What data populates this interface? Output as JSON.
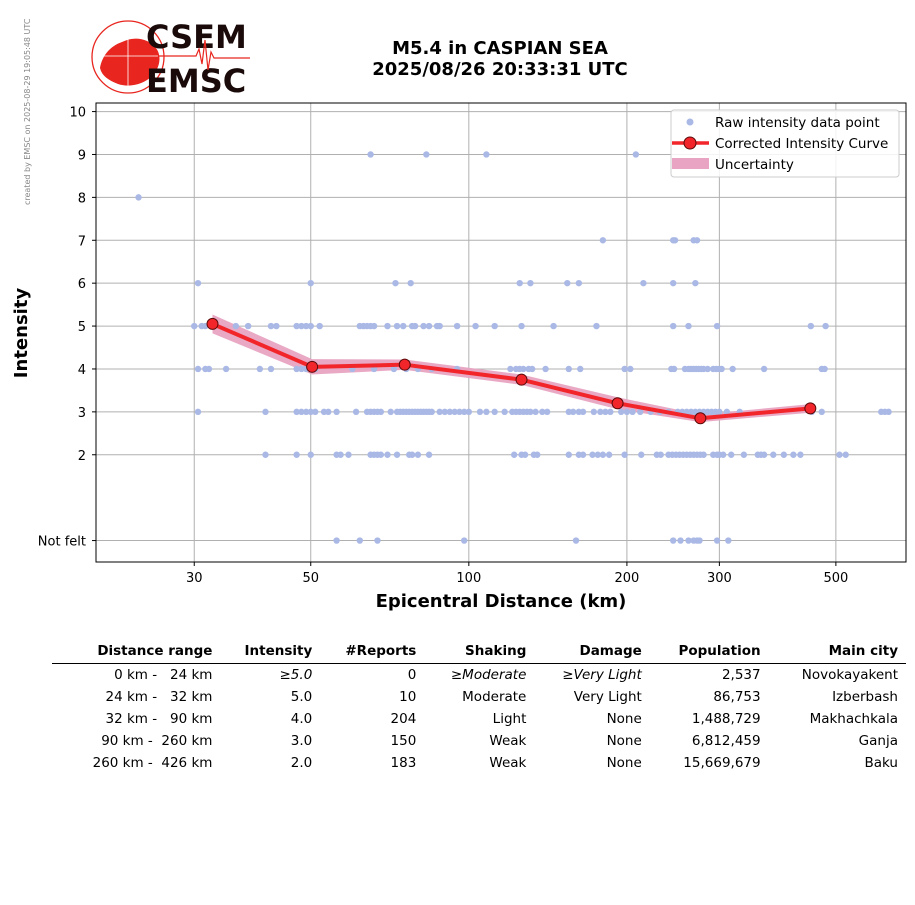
{
  "credit": "created by EMSC on 2025-08-29 19:05:48 UTC",
  "logo": {
    "top_text": "CSEM",
    "bottom_text": "EMSC",
    "colors": {
      "red": "#e8261f",
      "dark": "#1a0a0a"
    }
  },
  "title": {
    "line1": "M5.4 in CASPIAN SEA",
    "line2": "2025/08/26 20:33:31 UTC"
  },
  "chart_data": {
    "type": "scatter",
    "xlabel": "Epicentral Distance (km)",
    "ylabel": "Intensity",
    "x_scale": "log",
    "xlim": [
      19.5,
      680
    ],
    "ylim": [
      -0.5,
      10.2
    ],
    "x_ticks": [
      {
        "value": 30,
        "label": "30"
      },
      {
        "value": 50,
        "label": "50"
      },
      {
        "value": 100,
        "label": "100"
      },
      {
        "value": 200,
        "label": "200"
      },
      {
        "value": 300,
        "label": "300"
      },
      {
        "value": 500,
        "label": "500"
      }
    ],
    "y_ticks": [
      {
        "value": 0,
        "label": "Not felt"
      },
      {
        "value": 2,
        "label": "2"
      },
      {
        "value": 3,
        "label": "3"
      },
      {
        "value": 4,
        "label": "4"
      },
      {
        "value": 5,
        "label": "5"
      },
      {
        "value": 6,
        "label": "6"
      },
      {
        "value": 7,
        "label": "7"
      },
      {
        "value": 8,
        "label": "8"
      },
      {
        "value": 9,
        "label": "9"
      },
      {
        "value": 10,
        "label": "10"
      }
    ],
    "grid": true,
    "legend_position": "top-right",
    "legend": [
      "Raw intensity data point",
      "Corrected Intensity Curve",
      "Uncertainty"
    ],
    "colors": {
      "raw": "#aab8e6",
      "curve": "#f2262a",
      "marker": "#f2262a",
      "band": "#e8a4c2"
    },
    "raw_points": [
      {
        "x": 23.5,
        "y": 8
      },
      {
        "x": 65,
        "y": 9
      },
      {
        "x": 83,
        "y": 9
      },
      {
        "x": 108,
        "y": 9
      },
      {
        "x": 208,
        "y": 9
      },
      {
        "x": 180,
        "y": 7
      },
      {
        "x": 245,
        "y": 7
      },
      {
        "x": 247,
        "y": 7
      },
      {
        "x": 268,
        "y": 7
      },
      {
        "x": 272,
        "y": 7
      },
      {
        "x": 30.5,
        "y": 6
      },
      {
        "x": 50,
        "y": 6
      },
      {
        "x": 72.5,
        "y": 6
      },
      {
        "x": 77.5,
        "y": 6
      },
      {
        "x": 125,
        "y": 6
      },
      {
        "x": 131,
        "y": 6
      },
      {
        "x": 154,
        "y": 6
      },
      {
        "x": 162,
        "y": 6
      },
      {
        "x": 215,
        "y": 6
      },
      {
        "x": 245,
        "y": 6
      },
      {
        "x": 270,
        "y": 6
      },
      {
        "x": 30,
        "y": 5
      },
      {
        "x": 31,
        "y": 5
      },
      {
        "x": 31.5,
        "y": 5
      },
      {
        "x": 36,
        "y": 5
      },
      {
        "x": 38,
        "y": 5
      },
      {
        "x": 42,
        "y": 5
      },
      {
        "x": 43,
        "y": 5
      },
      {
        "x": 47,
        "y": 5
      },
      {
        "x": 48,
        "y": 5
      },
      {
        "x": 49,
        "y": 5
      },
      {
        "x": 50,
        "y": 5
      },
      {
        "x": 52,
        "y": 5
      },
      {
        "x": 62,
        "y": 5
      },
      {
        "x": 63,
        "y": 5
      },
      {
        "x": 64,
        "y": 5
      },
      {
        "x": 65,
        "y": 5
      },
      {
        "x": 66,
        "y": 5
      },
      {
        "x": 70,
        "y": 5
      },
      {
        "x": 73,
        "y": 5
      },
      {
        "x": 75,
        "y": 5
      },
      {
        "x": 78,
        "y": 5
      },
      {
        "x": 79,
        "y": 5
      },
      {
        "x": 82,
        "y": 5
      },
      {
        "x": 84,
        "y": 5
      },
      {
        "x": 87,
        "y": 5
      },
      {
        "x": 88,
        "y": 5
      },
      {
        "x": 95,
        "y": 5
      },
      {
        "x": 103,
        "y": 5
      },
      {
        "x": 112,
        "y": 5
      },
      {
        "x": 126,
        "y": 5
      },
      {
        "x": 145,
        "y": 5
      },
      {
        "x": 175,
        "y": 5
      },
      {
        "x": 245,
        "y": 5
      },
      {
        "x": 262,
        "y": 5
      },
      {
        "x": 297,
        "y": 5
      },
      {
        "x": 448,
        "y": 5
      },
      {
        "x": 478,
        "y": 5
      },
      {
        "x": 30.5,
        "y": 4
      },
      {
        "x": 31.5,
        "y": 4
      },
      {
        "x": 32,
        "y": 4
      },
      {
        "x": 34.5,
        "y": 4
      },
      {
        "x": 40,
        "y": 4
      },
      {
        "x": 42,
        "y": 4
      },
      {
        "x": 47,
        "y": 4
      },
      {
        "x": 48,
        "y": 4
      },
      {
        "x": 49,
        "y": 4
      },
      {
        "x": 50,
        "y": 4
      },
      {
        "x": 51,
        "y": 4
      },
      {
        "x": 60,
        "y": 4
      },
      {
        "x": 66,
        "y": 4
      },
      {
        "x": 72,
        "y": 4
      },
      {
        "x": 76,
        "y": 4
      },
      {
        "x": 80,
        "y": 4
      },
      {
        "x": 85,
        "y": 4
      },
      {
        "x": 95,
        "y": 4
      },
      {
        "x": 120,
        "y": 4
      },
      {
        "x": 123,
        "y": 4
      },
      {
        "x": 125,
        "y": 4
      },
      {
        "x": 127,
        "y": 4
      },
      {
        "x": 130,
        "y": 4
      },
      {
        "x": 132,
        "y": 4
      },
      {
        "x": 140,
        "y": 4
      },
      {
        "x": 155,
        "y": 4
      },
      {
        "x": 163,
        "y": 4
      },
      {
        "x": 198,
        "y": 4
      },
      {
        "x": 203,
        "y": 4
      },
      {
        "x": 243,
        "y": 4
      },
      {
        "x": 246,
        "y": 4
      },
      {
        "x": 258,
        "y": 4
      },
      {
        "x": 262,
        "y": 4
      },
      {
        "x": 265,
        "y": 4
      },
      {
        "x": 268,
        "y": 4
      },
      {
        "x": 271,
        "y": 4
      },
      {
        "x": 274,
        "y": 4
      },
      {
        "x": 277,
        "y": 4
      },
      {
        "x": 280,
        "y": 4
      },
      {
        "x": 285,
        "y": 4
      },
      {
        "x": 292,
        "y": 4
      },
      {
        "x": 296,
        "y": 4
      },
      {
        "x": 300,
        "y": 4
      },
      {
        "x": 303,
        "y": 4
      },
      {
        "x": 318,
        "y": 4
      },
      {
        "x": 365,
        "y": 4
      },
      {
        "x": 470,
        "y": 4
      },
      {
        "x": 476,
        "y": 4
      },
      {
        "x": 30.5,
        "y": 3
      },
      {
        "x": 41,
        "y": 3
      },
      {
        "x": 47,
        "y": 3
      },
      {
        "x": 48,
        "y": 3
      },
      {
        "x": 49,
        "y": 3
      },
      {
        "x": 50,
        "y": 3
      },
      {
        "x": 51,
        "y": 3
      },
      {
        "x": 53,
        "y": 3
      },
      {
        "x": 54,
        "y": 3
      },
      {
        "x": 56,
        "y": 3
      },
      {
        "x": 61,
        "y": 3
      },
      {
        "x": 64,
        "y": 3
      },
      {
        "x": 65,
        "y": 3
      },
      {
        "x": 66,
        "y": 3
      },
      {
        "x": 67,
        "y": 3
      },
      {
        "x": 68,
        "y": 3
      },
      {
        "x": 71,
        "y": 3
      },
      {
        "x": 73,
        "y": 3
      },
      {
        "x": 74,
        "y": 3
      },
      {
        "x": 75,
        "y": 3
      },
      {
        "x": 76,
        "y": 3
      },
      {
        "x": 77,
        "y": 3
      },
      {
        "x": 78,
        "y": 3
      },
      {
        "x": 79,
        "y": 3
      },
      {
        "x": 80,
        "y": 3
      },
      {
        "x": 81,
        "y": 3
      },
      {
        "x": 82,
        "y": 3
      },
      {
        "x": 83,
        "y": 3
      },
      {
        "x": 84,
        "y": 3
      },
      {
        "x": 85,
        "y": 3
      },
      {
        "x": 88,
        "y": 3
      },
      {
        "x": 90,
        "y": 3
      },
      {
        "x": 92,
        "y": 3
      },
      {
        "x": 94,
        "y": 3
      },
      {
        "x": 96,
        "y": 3
      },
      {
        "x": 98,
        "y": 3
      },
      {
        "x": 100,
        "y": 3
      },
      {
        "x": 105,
        "y": 3
      },
      {
        "x": 108,
        "y": 3
      },
      {
        "x": 112,
        "y": 3
      },
      {
        "x": 117,
        "y": 3
      },
      {
        "x": 121,
        "y": 3
      },
      {
        "x": 123,
        "y": 3
      },
      {
        "x": 125,
        "y": 3
      },
      {
        "x": 127,
        "y": 3
      },
      {
        "x": 129,
        "y": 3
      },
      {
        "x": 131,
        "y": 3
      },
      {
        "x": 134,
        "y": 3
      },
      {
        "x": 138,
        "y": 3
      },
      {
        "x": 141,
        "y": 3
      },
      {
        "x": 155,
        "y": 3
      },
      {
        "x": 158,
        "y": 3
      },
      {
        "x": 162,
        "y": 3
      },
      {
        "x": 165,
        "y": 3
      },
      {
        "x": 173,
        "y": 3
      },
      {
        "x": 178,
        "y": 3
      },
      {
        "x": 182,
        "y": 3
      },
      {
        "x": 186,
        "y": 3
      },
      {
        "x": 195,
        "y": 3
      },
      {
        "x": 200,
        "y": 3
      },
      {
        "x": 205,
        "y": 3
      },
      {
        "x": 212,
        "y": 3
      },
      {
        "x": 222,
        "y": 3
      },
      {
        "x": 231,
        "y": 3
      },
      {
        "x": 240,
        "y": 3
      },
      {
        "x": 250,
        "y": 3
      },
      {
        "x": 255,
        "y": 3
      },
      {
        "x": 260,
        "y": 3
      },
      {
        "x": 265,
        "y": 3
      },
      {
        "x": 270,
        "y": 3
      },
      {
        "x": 275,
        "y": 3
      },
      {
        "x": 280,
        "y": 3
      },
      {
        "x": 285,
        "y": 3
      },
      {
        "x": 290,
        "y": 3
      },
      {
        "x": 295,
        "y": 3
      },
      {
        "x": 300,
        "y": 3
      },
      {
        "x": 310,
        "y": 3
      },
      {
        "x": 328,
        "y": 3
      },
      {
        "x": 450,
        "y": 3
      },
      {
        "x": 470,
        "y": 3
      },
      {
        "x": 610,
        "y": 3
      },
      {
        "x": 620,
        "y": 3
      },
      {
        "x": 630,
        "y": 3
      },
      {
        "x": 41,
        "y": 2
      },
      {
        "x": 47,
        "y": 2
      },
      {
        "x": 50,
        "y": 2
      },
      {
        "x": 56,
        "y": 2
      },
      {
        "x": 57,
        "y": 2
      },
      {
        "x": 59,
        "y": 2
      },
      {
        "x": 65,
        "y": 2
      },
      {
        "x": 66,
        "y": 2
      },
      {
        "x": 67,
        "y": 2
      },
      {
        "x": 68,
        "y": 2
      },
      {
        "x": 70,
        "y": 2
      },
      {
        "x": 73,
        "y": 2
      },
      {
        "x": 77,
        "y": 2
      },
      {
        "x": 78,
        "y": 2
      },
      {
        "x": 80,
        "y": 2
      },
      {
        "x": 84,
        "y": 2
      },
      {
        "x": 122,
        "y": 2
      },
      {
        "x": 126,
        "y": 2
      },
      {
        "x": 128,
        "y": 2
      },
      {
        "x": 133,
        "y": 2
      },
      {
        "x": 135,
        "y": 2
      },
      {
        "x": 155,
        "y": 2
      },
      {
        "x": 162,
        "y": 2
      },
      {
        "x": 165,
        "y": 2
      },
      {
        "x": 172,
        "y": 2
      },
      {
        "x": 176,
        "y": 2
      },
      {
        "x": 180,
        "y": 2
      },
      {
        "x": 185,
        "y": 2
      },
      {
        "x": 198,
        "y": 2
      },
      {
        "x": 213,
        "y": 2
      },
      {
        "x": 228,
        "y": 2
      },
      {
        "x": 232,
        "y": 2
      },
      {
        "x": 240,
        "y": 2
      },
      {
        "x": 244,
        "y": 2
      },
      {
        "x": 248,
        "y": 2
      },
      {
        "x": 252,
        "y": 2
      },
      {
        "x": 256,
        "y": 2
      },
      {
        "x": 260,
        "y": 2
      },
      {
        "x": 264,
        "y": 2
      },
      {
        "x": 268,
        "y": 2
      },
      {
        "x": 272,
        "y": 2
      },
      {
        "x": 276,
        "y": 2
      },
      {
        "x": 280,
        "y": 2
      },
      {
        "x": 292,
        "y": 2
      },
      {
        "x": 297,
        "y": 2
      },
      {
        "x": 300,
        "y": 2
      },
      {
        "x": 305,
        "y": 2
      },
      {
        "x": 316,
        "y": 2
      },
      {
        "x": 334,
        "y": 2
      },
      {
        "x": 355,
        "y": 2
      },
      {
        "x": 360,
        "y": 2
      },
      {
        "x": 365,
        "y": 2
      },
      {
        "x": 380,
        "y": 2
      },
      {
        "x": 398,
        "y": 2
      },
      {
        "x": 415,
        "y": 2
      },
      {
        "x": 428,
        "y": 2
      },
      {
        "x": 508,
        "y": 2
      },
      {
        "x": 522,
        "y": 2
      },
      {
        "x": 56,
        "y": 0
      },
      {
        "x": 62,
        "y": 0
      },
      {
        "x": 67,
        "y": 0
      },
      {
        "x": 98,
        "y": 0
      },
      {
        "x": 160,
        "y": 0
      },
      {
        "x": 245,
        "y": 0
      },
      {
        "x": 253,
        "y": 0
      },
      {
        "x": 262,
        "y": 0
      },
      {
        "x": 268,
        "y": 0
      },
      {
        "x": 272,
        "y": 0
      },
      {
        "x": 275,
        "y": 0
      },
      {
        "x": 297,
        "y": 0
      },
      {
        "x": 312,
        "y": 0
      }
    ],
    "curve": [
      {
        "x": 32.5,
        "y": 5.05
      },
      {
        "x": 50.3,
        "y": 4.05
      },
      {
        "x": 75.5,
        "y": 4.1
      },
      {
        "x": 126,
        "y": 3.75
      },
      {
        "x": 192,
        "y": 3.2
      },
      {
        "x": 276,
        "y": 2.85
      },
      {
        "x": 447,
        "y": 3.08
      }
    ],
    "uncertainty": [
      0.22,
      0.18,
      0.12,
      0.12,
      0.14,
      0.09,
      0.1
    ]
  },
  "table": {
    "headers": [
      "Distance range",
      "Intensity",
      "#Reports",
      "Shaking",
      "Damage",
      "Population",
      "Main city"
    ],
    "rows": [
      {
        "cells": [
          "0 km -   24 km",
          "≥5.0",
          "0",
          "≥Moderate",
          "≥Very Light",
          "2,537",
          "Novokayakent"
        ],
        "italic": [
          false,
          true,
          false,
          true,
          true,
          false,
          false
        ]
      },
      {
        "cells": [
          "24 km -   32 km",
          "5.0",
          "10",
          "Moderate",
          "Very Light",
          "86,753",
          "Izberbash"
        ],
        "italic": [
          false,
          false,
          false,
          false,
          false,
          false,
          false
        ]
      },
      {
        "cells": [
          "32 km -   90 km",
          "4.0",
          "204",
          "Light",
          "None",
          "1,488,729",
          "Makhachkala"
        ],
        "italic": [
          false,
          false,
          false,
          false,
          false,
          false,
          false
        ]
      },
      {
        "cells": [
          "90 km -  260 km",
          "3.0",
          "150",
          "Weak",
          "None",
          "6,812,459",
          "Ganja"
        ],
        "italic": [
          false,
          false,
          false,
          false,
          false,
          false,
          false
        ]
      },
      {
        "cells": [
          "260 km -  426 km",
          "2.0",
          "183",
          "Weak",
          "None",
          "15,669,679",
          "Baku"
        ],
        "italic": [
          false,
          false,
          false,
          false,
          false,
          false,
          false
        ]
      }
    ]
  }
}
